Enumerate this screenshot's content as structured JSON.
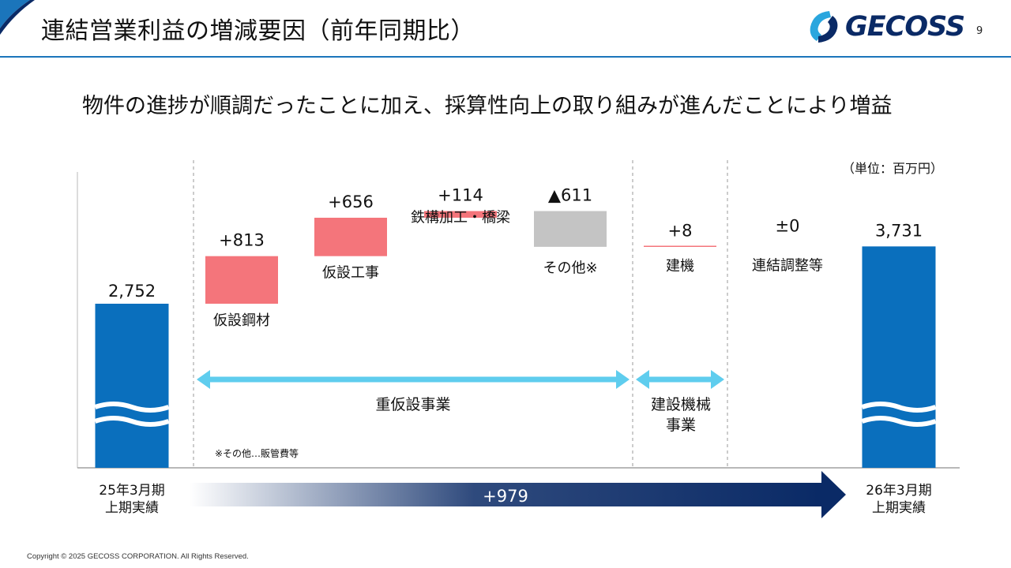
{
  "header": {
    "title": "連結営業利益の増減要因（前年同期比）",
    "page_number": "9",
    "logo_text": "GECOSS"
  },
  "subtitle": "物件の進捗が順調だったことに加え、採算性向上の取り組みが進んだことにより増益",
  "footnote": "※その他…販管費等",
  "copyright": "Copyright © 2025 GECOSS CORPORATION. All Rights Reserved.",
  "colors": {
    "accent_blue": "#1b75bb",
    "bar_blue": "#0a6fbd",
    "increase_red": "#f4757b",
    "decrease_gray": "#c4c4c4",
    "arrow_cyan": "#5fcdee",
    "navy": "#0a2a66"
  },
  "chart_data": {
    "type": "waterfall",
    "unit_label": "（単位：百万円）",
    "start": {
      "label": [
        "25年3月期",
        "上期実績"
      ],
      "value": 2752,
      "value_label": "2,752"
    },
    "end": {
      "label": [
        "26年3月期",
        "上期実績"
      ],
      "value": 3731,
      "value_label": "3,731"
    },
    "steps": [
      {
        "name": "仮設鋼材",
        "value": 813,
        "value_label": "+813",
        "segment": "重仮設事業"
      },
      {
        "name": "仮設工事",
        "value": 656,
        "value_label": "+656",
        "segment": "重仮設事業"
      },
      {
        "name": "鉄構加工・橋梁",
        "value": 114,
        "value_label": "+114",
        "segment": "重仮設事業"
      },
      {
        "name": "その他※",
        "value": -611,
        "value_label": "▲611",
        "segment": "重仮設事業"
      },
      {
        "name": "建機",
        "value": 8,
        "value_label": "+8",
        "segment": "建設機械事業"
      },
      {
        "name": "連結調整等",
        "value": 0,
        "value_label": "±0",
        "segment": ""
      }
    ],
    "segments": [
      {
        "name": "重仮設事業"
      },
      {
        "name": [
          "建設機械",
          "事業"
        ]
      }
    ],
    "total_change_label": "+979",
    "axis_break": true
  }
}
